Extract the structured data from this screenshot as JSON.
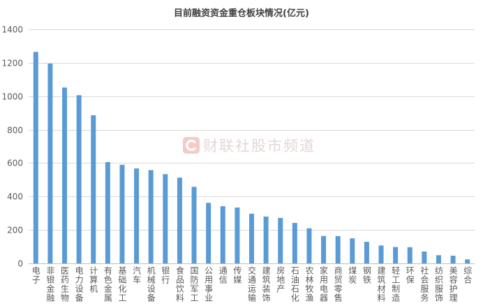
{
  "chart_data": {
    "type": "bar",
    "title": "目前融资资金重仓板块情况(亿元)",
    "categories": [
      "电子",
      "非银金融",
      "医药生物",
      "电力设备",
      "计算机",
      "有色金属",
      "基础化工",
      "汽车",
      "机械设备",
      "银行",
      "食品饮料",
      "国防军工",
      "公用事业",
      "通信",
      "传媒",
      "交通运输",
      "建筑装饰",
      "房地产",
      "石油石化",
      "农林牧渔",
      "家用电器",
      "商贸零售",
      "煤炭",
      "钢铁",
      "建筑材料",
      "轻工制造",
      "环保",
      "社会服务",
      "纺织服饰",
      "美容护理",
      "综合"
    ],
    "values": [
      1265,
      1195,
      1052,
      1006,
      886,
      606,
      590,
      568,
      558,
      534,
      513,
      458,
      362,
      342,
      334,
      297,
      280,
      272,
      242,
      210,
      164,
      163,
      150,
      129,
      107,
      98,
      97,
      71,
      49,
      46,
      24
    ],
    "ylim": [
      0,
      1400
    ],
    "yticks": [
      0,
      200,
      400,
      600,
      800,
      1000,
      1200,
      1400
    ],
    "grid": true,
    "legend": "none"
  },
  "colors": {
    "bar": "#5B9BD5",
    "grid": "#D9D9D9",
    "axis": "#BFBFBF",
    "tick_text": "#595959",
    "logo": "#F3C6BF"
  },
  "watermark": {
    "logo_icon": "logo-icon",
    "text": "财联社股市频道"
  }
}
